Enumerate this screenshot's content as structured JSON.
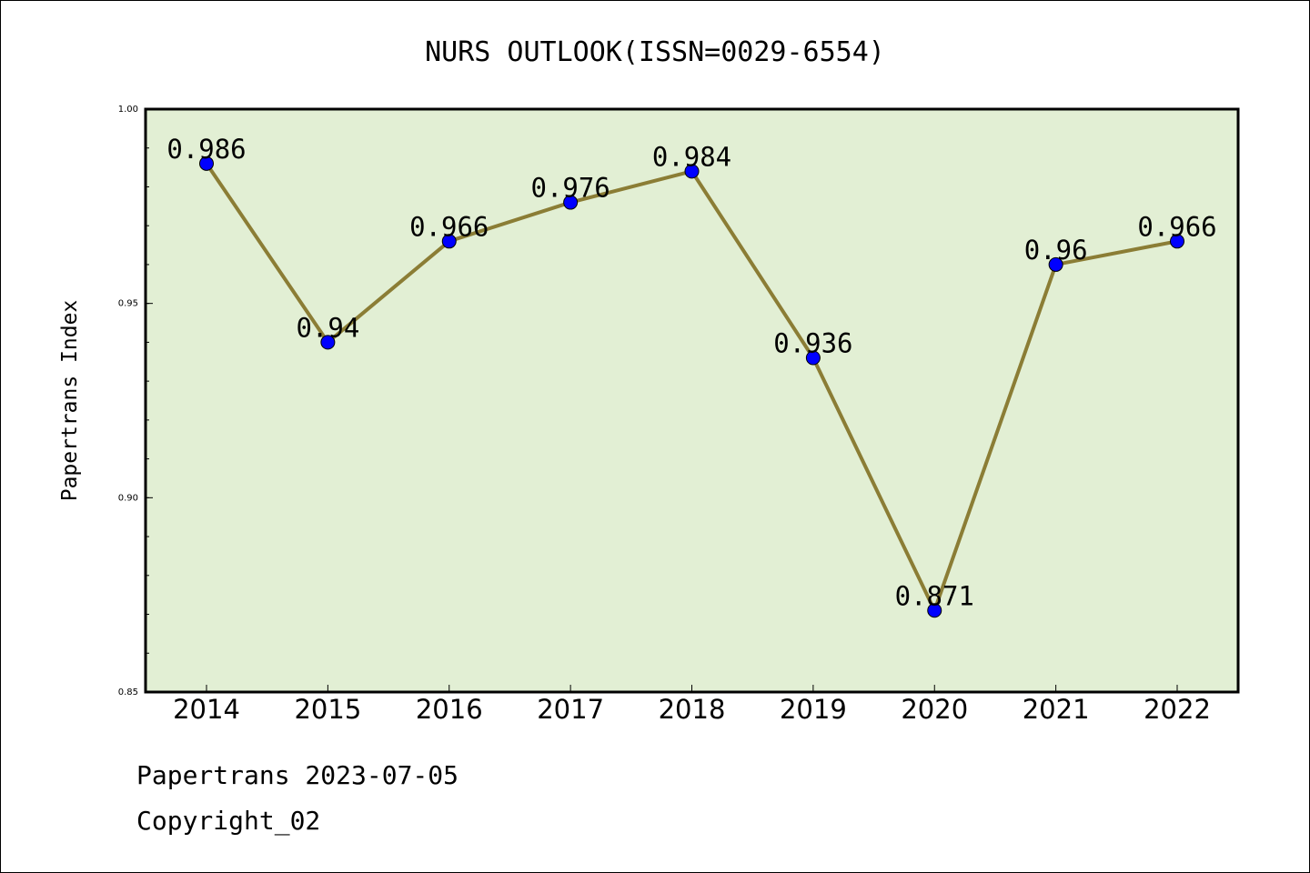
{
  "footer": {
    "line1": "Papertrans 2023-07-05",
    "line2": "Copyright_02"
  },
  "chart_data": {
    "type": "line",
    "title": "NURS OUTLOOK(ISSN=0029-6554)",
    "xlabel": "",
    "ylabel": "Papertrans Index",
    "categories": [
      "2014",
      "2015",
      "2016",
      "2017",
      "2018",
      "2019",
      "2020",
      "2021",
      "2022"
    ],
    "series": [
      {
        "values": [
          0.986,
          0.94,
          0.966,
          0.976,
          0.984,
          0.936,
          0.871,
          0.96,
          0.966
        ],
        "data_labels": [
          "0.986",
          "0.94",
          "0.966",
          "0.976",
          "0.984",
          "0.936",
          "0.871",
          "0.96",
          "0.966"
        ],
        "line_color": "#8b7d35",
        "marker_color": "#0000ff"
      }
    ],
    "ylim": [
      0.85,
      1.0
    ],
    "yticks": [
      "1.00",
      "0.95",
      "0.90",
      "0.85"
    ],
    "ytick_values": [
      1.0,
      0.95,
      0.9,
      0.85
    ],
    "grid": false,
    "plot_background": "#e2efd4"
  }
}
